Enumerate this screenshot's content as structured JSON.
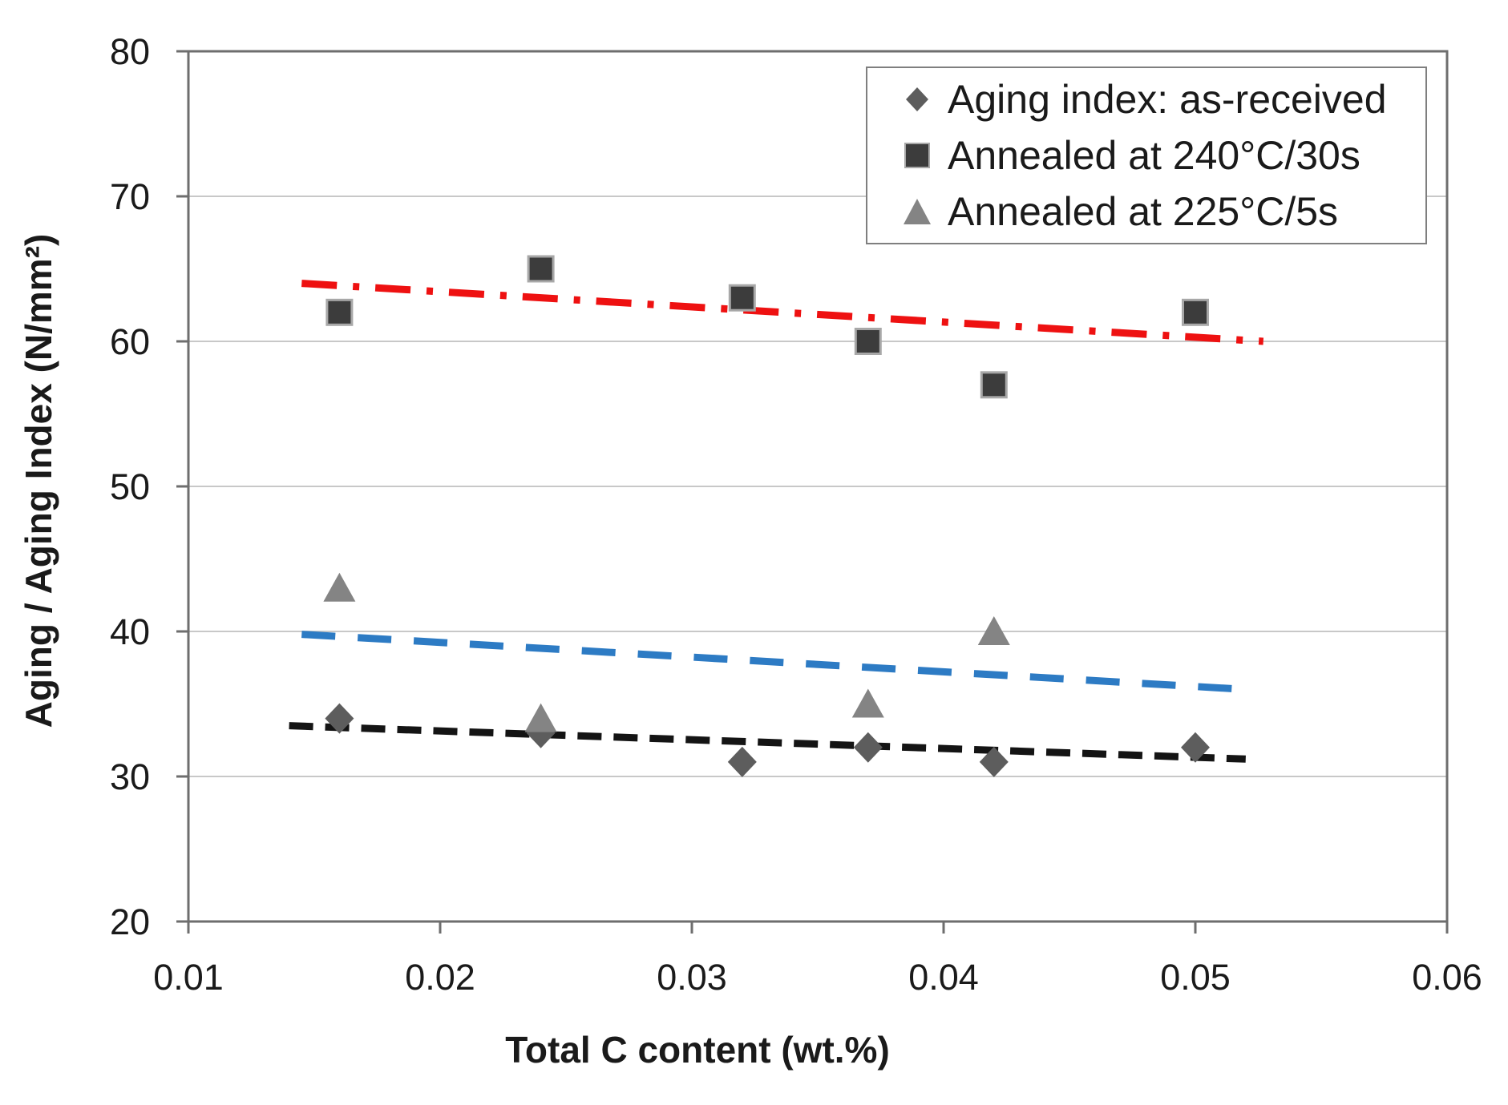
{
  "figure": {
    "background": "#ffffff"
  },
  "chart_data": {
    "type": "scatter",
    "title": "",
    "xlabel": "Total C content (wt.%)",
    "ylabel": "Aging / Aging Index (N/mm²)",
    "xlim": [
      0.01,
      0.06
    ],
    "ylim": [
      20,
      80
    ],
    "x_ticks": [
      "0.01",
      "0.02",
      "0.03",
      "0.04",
      "0.05",
      "0.06"
    ],
    "x_tick_values": [
      0.01,
      0.02,
      0.03,
      0.04,
      0.05,
      0.06
    ],
    "y_ticks": [
      "20",
      "30",
      "40",
      "50",
      "60",
      "70",
      "80"
    ],
    "y_tick_values": [
      20,
      30,
      40,
      50,
      60,
      70,
      80
    ],
    "grid": "horizontal",
    "grid_color": "#c8c8c8",
    "legend_position": "top-right",
    "series": [
      {
        "name": "Aging index: as-received",
        "marker": "diamond",
        "color": "#5d5d5d",
        "points": [
          [
            0.016,
            34
          ],
          [
            0.024,
            33
          ],
          [
            0.032,
            31
          ],
          [
            0.037,
            32
          ],
          [
            0.042,
            31
          ],
          [
            0.05,
            32
          ]
        ],
        "trendline": {
          "style": "short-dash",
          "color": "#141414",
          "from": [
            0.014,
            33.5
          ],
          "to": [
            0.052,
            31.2
          ]
        }
      },
      {
        "name": "Annealed at 240°C/30s",
        "marker": "square",
        "color": "#3c3c3c",
        "points": [
          [
            0.016,
            62
          ],
          [
            0.024,
            65
          ],
          [
            0.032,
            63
          ],
          [
            0.037,
            60
          ],
          [
            0.042,
            57
          ],
          [
            0.05,
            62
          ]
        ],
        "trendline": {
          "style": "dash-dot",
          "color": "#ee1111",
          "from": [
            0.0145,
            64.0
          ],
          "to": [
            0.0527,
            60.0
          ]
        }
      },
      {
        "name": "Annealed at 225°C/5s",
        "marker": "triangle",
        "color": "#848484",
        "points": [
          [
            0.016,
            43
          ],
          [
            0.024,
            34
          ],
          [
            0.037,
            35
          ],
          [
            0.042,
            40
          ]
        ],
        "trendline": {
          "style": "dash",
          "color": "#2d7bc4",
          "from": [
            0.0145,
            39.8
          ],
          "to": [
            0.052,
            36.0
          ]
        }
      }
    ]
  }
}
